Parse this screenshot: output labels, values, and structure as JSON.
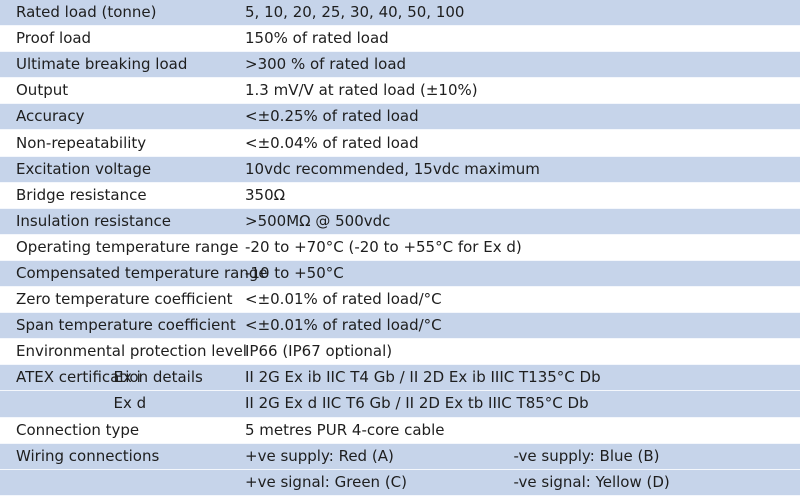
{
  "rows": [
    {
      "label": "Rated load (tonne)",
      "value": "5, 10, 20, 25, 30, 40, 50, 100"
    },
    {
      "label": "Proof load",
      "value": "150% of rated load"
    },
    {
      "label": "Ultimate breaking load",
      "value": ">300 % of rated load"
    },
    {
      "label": "Output",
      "value": "1.3 mV/V at rated load (±10%)"
    },
    {
      "label": "Accuracy",
      "value": "<±0.25% of rated load"
    },
    {
      "label": "Non-repeatability",
      "value": "<±0.04% of rated load"
    },
    {
      "label": "Excitation voltage",
      "value": "10vdc recommended, 15vdc maximum"
    },
    {
      "label": "Bridge resistance",
      "value": "350Ω"
    },
    {
      "label": "Insulation resistance",
      "value": ">500MΩ @ 500vdc"
    },
    {
      "label": "Operating temperature range",
      "value": "-20 to +70°C (-20 to +55°C for Ex d)"
    },
    {
      "label": "Compensated temperature range",
      "value": "-10 to +50°C"
    },
    {
      "label": "Zero temperature coefficient",
      "value": "<±0.01% of rated load/°C"
    },
    {
      "label": "Span temperature coefficient",
      "value": "<±0.01% of rated load/°C"
    },
    {
      "label": "Environmental protection level",
      "value": "IP66 (IP67 optional)"
    }
  ],
  "atex": {
    "label": "ATEX certification details",
    "ex_i_label": "Ex i",
    "ex_i_value": "II 2G Ex ib IIC T4 Gb  / II 2D Ex ib IIIC T135°C Db",
    "ex_d_label": "Ex d",
    "ex_d_value": "II 2G Ex d IIC T6 Gb / II 2D Ex tb IIIC T85°C Db"
  },
  "connection": {
    "label": "Connection type",
    "value": "5 metres PUR 4-core cable"
  },
  "wiring": {
    "label": "Wiring connections",
    "pos_supply": "+ve supply:  Red (A)",
    "neg_supply": "-ve supply:  Blue (B)",
    "pos_signal": "+ve signal:  Green (C)",
    "neg_signal": "-ve signal:  Yellow (D)"
  },
  "colors": {
    "shade": "#c6d4ea",
    "plain": "#ffffff",
    "text": "#1e1e1e"
  }
}
